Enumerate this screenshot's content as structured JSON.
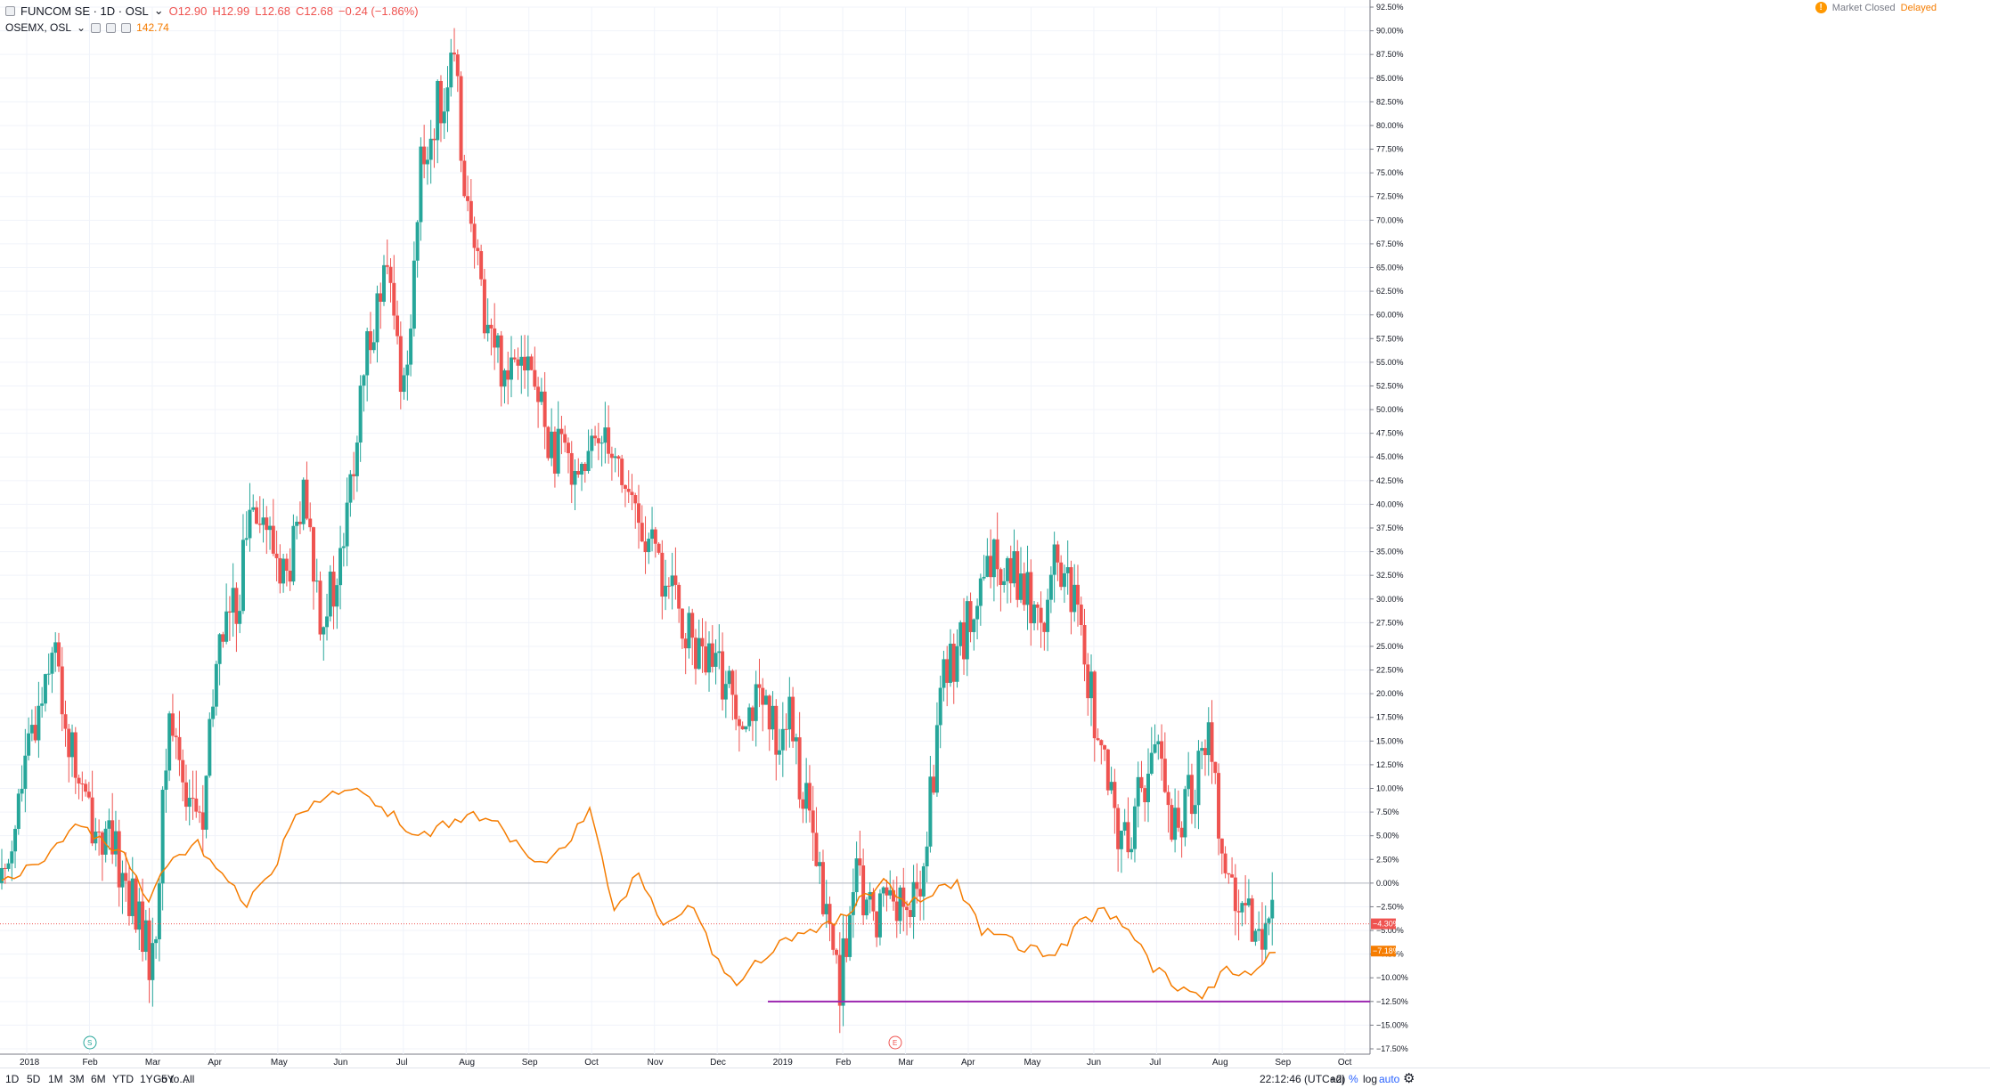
{
  "legend": {
    "symbol": "FUNCOM SE · 1D · OSL",
    "open": "O12.90",
    "high": "H12.99",
    "low": "L12.68",
    "close": "C12.68",
    "change": "−0.24 (−1.86%)",
    "compare_symbol": "OSEMX, OSL",
    "compare_value": "142.74"
  },
  "status": {
    "market": "Market Closed",
    "delayed": "Delayed"
  },
  "badges": {
    "main": "−4.30%",
    "compare": "−7.18%"
  },
  "markers": {
    "split": "S",
    "earnings": "E"
  },
  "toolbar": {
    "ranges": [
      "1D",
      "5D",
      "1M",
      "3M",
      "6M",
      "YTD",
      "1Y",
      "5Y",
      "All"
    ],
    "goto": "Go to...",
    "clock": "22:12:46 (UTC+2)",
    "adj": "adj",
    "pct": "%",
    "log": "log",
    "auto": "auto"
  },
  "colors": {
    "up": "#26a69a",
    "down": "#ef5350",
    "compare": "#f57c00",
    "support": "#9c27b0"
  },
  "chart_data": {
    "type": "candlestick",
    "scale": "percent",
    "y_ticks": [
      "92.50%",
      "90.00%",
      "87.50%",
      "85.00%",
      "82.50%",
      "80.00%",
      "77.50%",
      "75.00%",
      "72.50%",
      "70.00%",
      "67.50%",
      "65.00%",
      "62.50%",
      "60.00%",
      "57.50%",
      "55.00%",
      "52.50%",
      "50.00%",
      "47.50%",
      "45.00%",
      "42.50%",
      "40.00%",
      "37.50%",
      "35.00%",
      "32.50%",
      "30.00%",
      "27.50%",
      "25.00%",
      "22.50%",
      "20.00%",
      "17.50%",
      "15.00%",
      "12.50%",
      "10.00%",
      "7.50%",
      "5.00%",
      "2.50%",
      "0.00%",
      "−2.50%",
      "−5.00%",
      "−7.50%",
      "−10.00%",
      "−12.50%",
      "−15.00%",
      "−17.50%"
    ],
    "ylim": [
      -17.5,
      92.5
    ],
    "x_ticks": [
      "2018",
      "Feb",
      "Mar",
      "Apr",
      "May",
      "Jun",
      "Jul",
      "Aug",
      "Sep",
      "Oct",
      "Nov",
      "Dec",
      "2019",
      "Feb",
      "Mar",
      "Apr",
      "May",
      "Jun",
      "Jul",
      "Aug",
      "Sep",
      "Oct"
    ],
    "series": [
      {
        "name": "FUNCOM SE",
        "kind": "candles",
        "points": [
          [
            0,
            0
          ],
          [
            2,
            17
          ],
          [
            3,
            26
          ],
          [
            4,
            15
          ],
          [
            5,
            8
          ],
          [
            6,
            5
          ],
          [
            7,
            2
          ],
          [
            8,
            -3
          ],
          [
            9,
            -9
          ],
          [
            10,
            18
          ],
          [
            11,
            10
          ],
          [
            12,
            6
          ],
          [
            13,
            27
          ],
          [
            14,
            29
          ],
          [
            15,
            42
          ],
          [
            16,
            36
          ],
          [
            17,
            32
          ],
          [
            18,
            40
          ],
          [
            19,
            29
          ],
          [
            20,
            31
          ],
          [
            21,
            44
          ],
          [
            22,
            59
          ],
          [
            23,
            64
          ],
          [
            24,
            52
          ],
          [
            25,
            75
          ],
          [
            26,
            82
          ],
          [
            27,
            86
          ],
          [
            28,
            68
          ],
          [
            29,
            59
          ],
          [
            30,
            54
          ],
          [
            31,
            58
          ],
          [
            32,
            51
          ],
          [
            33,
            45
          ],
          [
            34,
            45
          ],
          [
            35,
            44
          ],
          [
            36,
            49
          ],
          [
            37,
            43
          ],
          [
            38,
            38
          ],
          [
            39,
            34
          ],
          [
            40,
            30
          ],
          [
            41,
            26
          ],
          [
            42,
            23
          ],
          [
            43,
            22
          ],
          [
            44,
            19
          ],
          [
            45,
            19
          ],
          [
            46,
            16
          ],
          [
            47,
            17
          ],
          [
            48,
            8
          ],
          [
            49,
            -2
          ],
          [
            50,
            -10
          ],
          [
            51,
            0
          ],
          [
            52,
            -4
          ],
          [
            53,
            0
          ],
          [
            54,
            -4
          ],
          [
            55,
            1
          ],
          [
            56,
            20
          ],
          [
            57,
            25
          ],
          [
            58,
            28
          ],
          [
            59,
            33
          ],
          [
            60,
            35
          ],
          [
            61,
            31
          ],
          [
            62,
            28
          ],
          [
            63,
            34
          ],
          [
            64,
            29
          ],
          [
            65,
            20
          ],
          [
            66,
            9
          ],
          [
            67,
            4
          ],
          [
            68,
            10
          ],
          [
            69,
            15
          ],
          [
            70,
            5
          ],
          [
            71,
            10
          ],
          [
            72,
            16
          ],
          [
            73,
            2
          ],
          [
            74,
            -5
          ],
          [
            75,
            -4
          ],
          [
            76,
            -4.3
          ]
        ]
      },
      {
        "name": "OSEMX, OSL",
        "kind": "line",
        "points": [
          [
            0,
            0
          ],
          [
            2,
            3
          ],
          [
            3,
            6
          ],
          [
            4,
            5
          ],
          [
            5,
            3
          ],
          [
            6,
            -2
          ],
          [
            7,
            3
          ],
          [
            8,
            4
          ],
          [
            9,
            1
          ],
          [
            10,
            -2
          ],
          [
            11,
            1
          ],
          [
            12,
            7
          ],
          [
            13,
            9
          ],
          [
            14,
            10
          ],
          [
            15,
            9
          ],
          [
            16,
            7
          ],
          [
            17,
            5
          ],
          [
            18,
            6
          ],
          [
            19,
            7
          ],
          [
            20,
            7
          ],
          [
            21,
            4
          ],
          [
            22,
            2
          ],
          [
            23,
            4
          ],
          [
            24,
            8
          ],
          [
            25,
            -3
          ],
          [
            26,
            1
          ],
          [
            27,
            -5
          ],
          [
            28,
            -2
          ],
          [
            29,
            -7
          ],
          [
            30,
            -11
          ],
          [
            31,
            -8
          ],
          [
            32,
            -6
          ],
          [
            33,
            -5
          ],
          [
            34,
            -4
          ],
          [
            35,
            -2
          ],
          [
            36,
            0
          ],
          [
            37,
            -2
          ],
          [
            38,
            -1
          ],
          [
            39,
            0
          ],
          [
            40,
            -5
          ],
          [
            41,
            -6
          ],
          [
            42,
            -7
          ],
          [
            43,
            -8
          ],
          [
            44,
            -4
          ],
          [
            45,
            -3
          ],
          [
            46,
            -5
          ],
          [
            47,
            -9
          ],
          [
            48,
            -11
          ],
          [
            49,
            -12
          ],
          [
            50,
            -9
          ],
          [
            51,
            -10
          ],
          [
            52,
            -7.2
          ]
        ]
      }
    ],
    "support_level": -12.5
  }
}
